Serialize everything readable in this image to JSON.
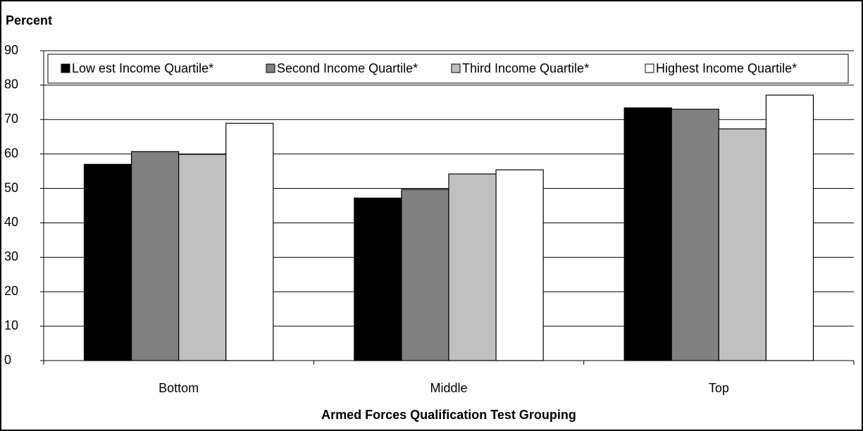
{
  "chart_data": {
    "type": "bar",
    "title": "Percent",
    "x_label": "Armed Forces Qualification Test Grouping",
    "categories": [
      "Bottom",
      "Middle",
      "Top"
    ],
    "series": [
      {
        "name": "Low est Income Quartile*",
        "color": "#000000",
        "values": [
          57.0,
          47.2,
          73.4
        ]
      },
      {
        "name": "Second Income Quartile*",
        "color": "#808080",
        "values": [
          60.7,
          49.7,
          73.0
        ]
      },
      {
        "name": "Third Income Quartile*",
        "color": "#c0c0c0",
        "values": [
          59.9,
          54.2,
          67.3
        ]
      },
      {
        "name": "Highest Income Quartile*",
        "color": "#ffffff",
        "values": [
          68.9,
          55.4,
          77.1
        ]
      }
    ],
    "ylim": [
      0,
      90
    ],
    "yticks": [
      0,
      10,
      20,
      30,
      40,
      50,
      60,
      70,
      80,
      90
    ],
    "grid": true,
    "legend": "top"
  }
}
